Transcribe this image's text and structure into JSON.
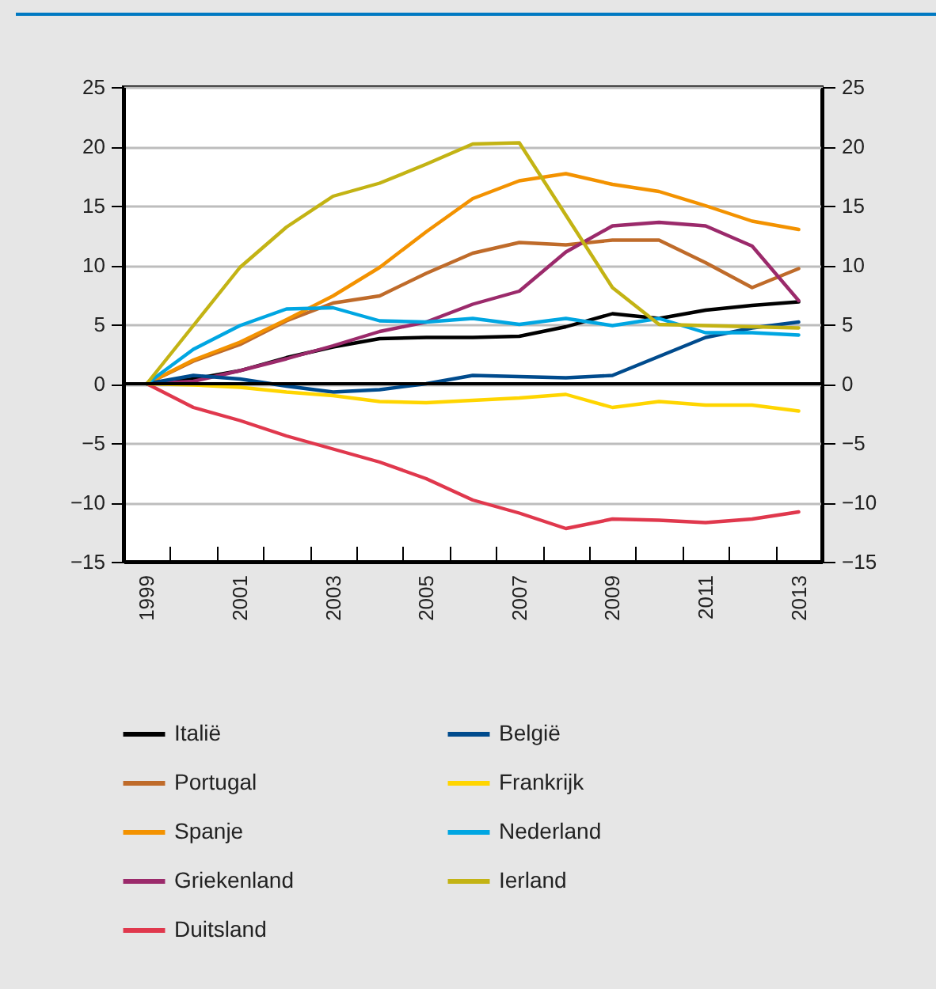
{
  "chart_data": {
    "type": "line",
    "categories": [
      "1999",
      null,
      "2001",
      null,
      "2003",
      null,
      "2005",
      null,
      "2007",
      null,
      "2009",
      null,
      "2011",
      null,
      "2013"
    ],
    "series": [
      {
        "name": "Italië",
        "color": "#000000",
        "values": [
          0,
          0.4,
          1.1,
          2.2,
          3.1,
          3.8,
          3.9,
          3.9,
          4.0,
          4.8,
          5.9,
          5.5,
          6.2,
          6.6,
          6.9
        ]
      },
      {
        "name": "Portugal",
        "color": "#bf6b2a",
        "values": [
          0,
          1.9,
          3.3,
          5.3,
          6.8,
          7.4,
          9.3,
          11.0,
          11.9,
          11.7,
          12.1,
          12.1,
          10.2,
          8.1,
          9.7
        ]
      },
      {
        "name": "Spanje",
        "color": "#f39200",
        "values": [
          0,
          2.0,
          3.5,
          5.4,
          7.4,
          9.8,
          12.8,
          15.6,
          17.1,
          17.7,
          16.8,
          16.2,
          15.0,
          13.7,
          13.0
        ]
      },
      {
        "name": "Griekenland",
        "color": "#9b2a6b",
        "values": [
          0,
          0.2,
          1.1,
          2.1,
          3.2,
          4.4,
          5.2,
          6.7,
          7.8,
          11.1,
          13.3,
          13.6,
          13.3,
          11.6,
          7.0
        ]
      },
      {
        "name": "Duitsland",
        "color": "#e0384d",
        "values": [
          0,
          -2.0,
          -3.1,
          -4.4,
          -5.5,
          -6.6,
          -8.0,
          -9.8,
          -10.9,
          -12.2,
          -11.4,
          -11.5,
          -11.7,
          -11.4,
          -10.8
        ]
      },
      {
        "name": "België",
        "color": "#004b8d",
        "values": [
          0,
          0.7,
          0.4,
          -0.2,
          -0.7,
          -0.5,
          0,
          0.7,
          0.6,
          0.5,
          0.7,
          2.3,
          3.9,
          4.7,
          5.2
        ]
      },
      {
        "name": "Frankrijk",
        "color": "#ffd500",
        "values": [
          0,
          -0.1,
          -0.3,
          -0.7,
          -1.0,
          -1.5,
          -1.6,
          -1.4,
          -1.2,
          -0.9,
          -2.0,
          -1.5,
          -1.8,
          -1.8,
          -2.3
        ]
      },
      {
        "name": "Nederland",
        "color": "#00a6e2",
        "values": [
          0,
          2.9,
          4.9,
          6.3,
          6.4,
          5.3,
          5.2,
          5.5,
          5.0,
          5.5,
          4.9,
          5.5,
          4.3,
          4.3,
          4.1
        ]
      },
      {
        "name": "Ierland",
        "color": "#c3b314",
        "values": [
          0,
          4.9,
          9.8,
          13.2,
          15.8,
          16.9,
          18.5,
          20.2,
          20.3,
          14.2,
          8.1,
          5.0,
          4.9,
          4.8,
          4.7
        ]
      }
    ],
    "ylim": [
      -15,
      25
    ],
    "yticks": [
      -15,
      -10,
      -5,
      0,
      5,
      10,
      15,
      20,
      25
    ],
    "y2lim": [
      -15,
      25
    ],
    "y2ticks": [
      -15,
      -10,
      -5,
      0,
      5,
      10,
      15,
      20,
      25
    ],
    "ref_lines": [
      {
        "axis": "y",
        "value": 0,
        "color": "#000000"
      }
    ],
    "grid": "y",
    "legend": "bottom"
  }
}
